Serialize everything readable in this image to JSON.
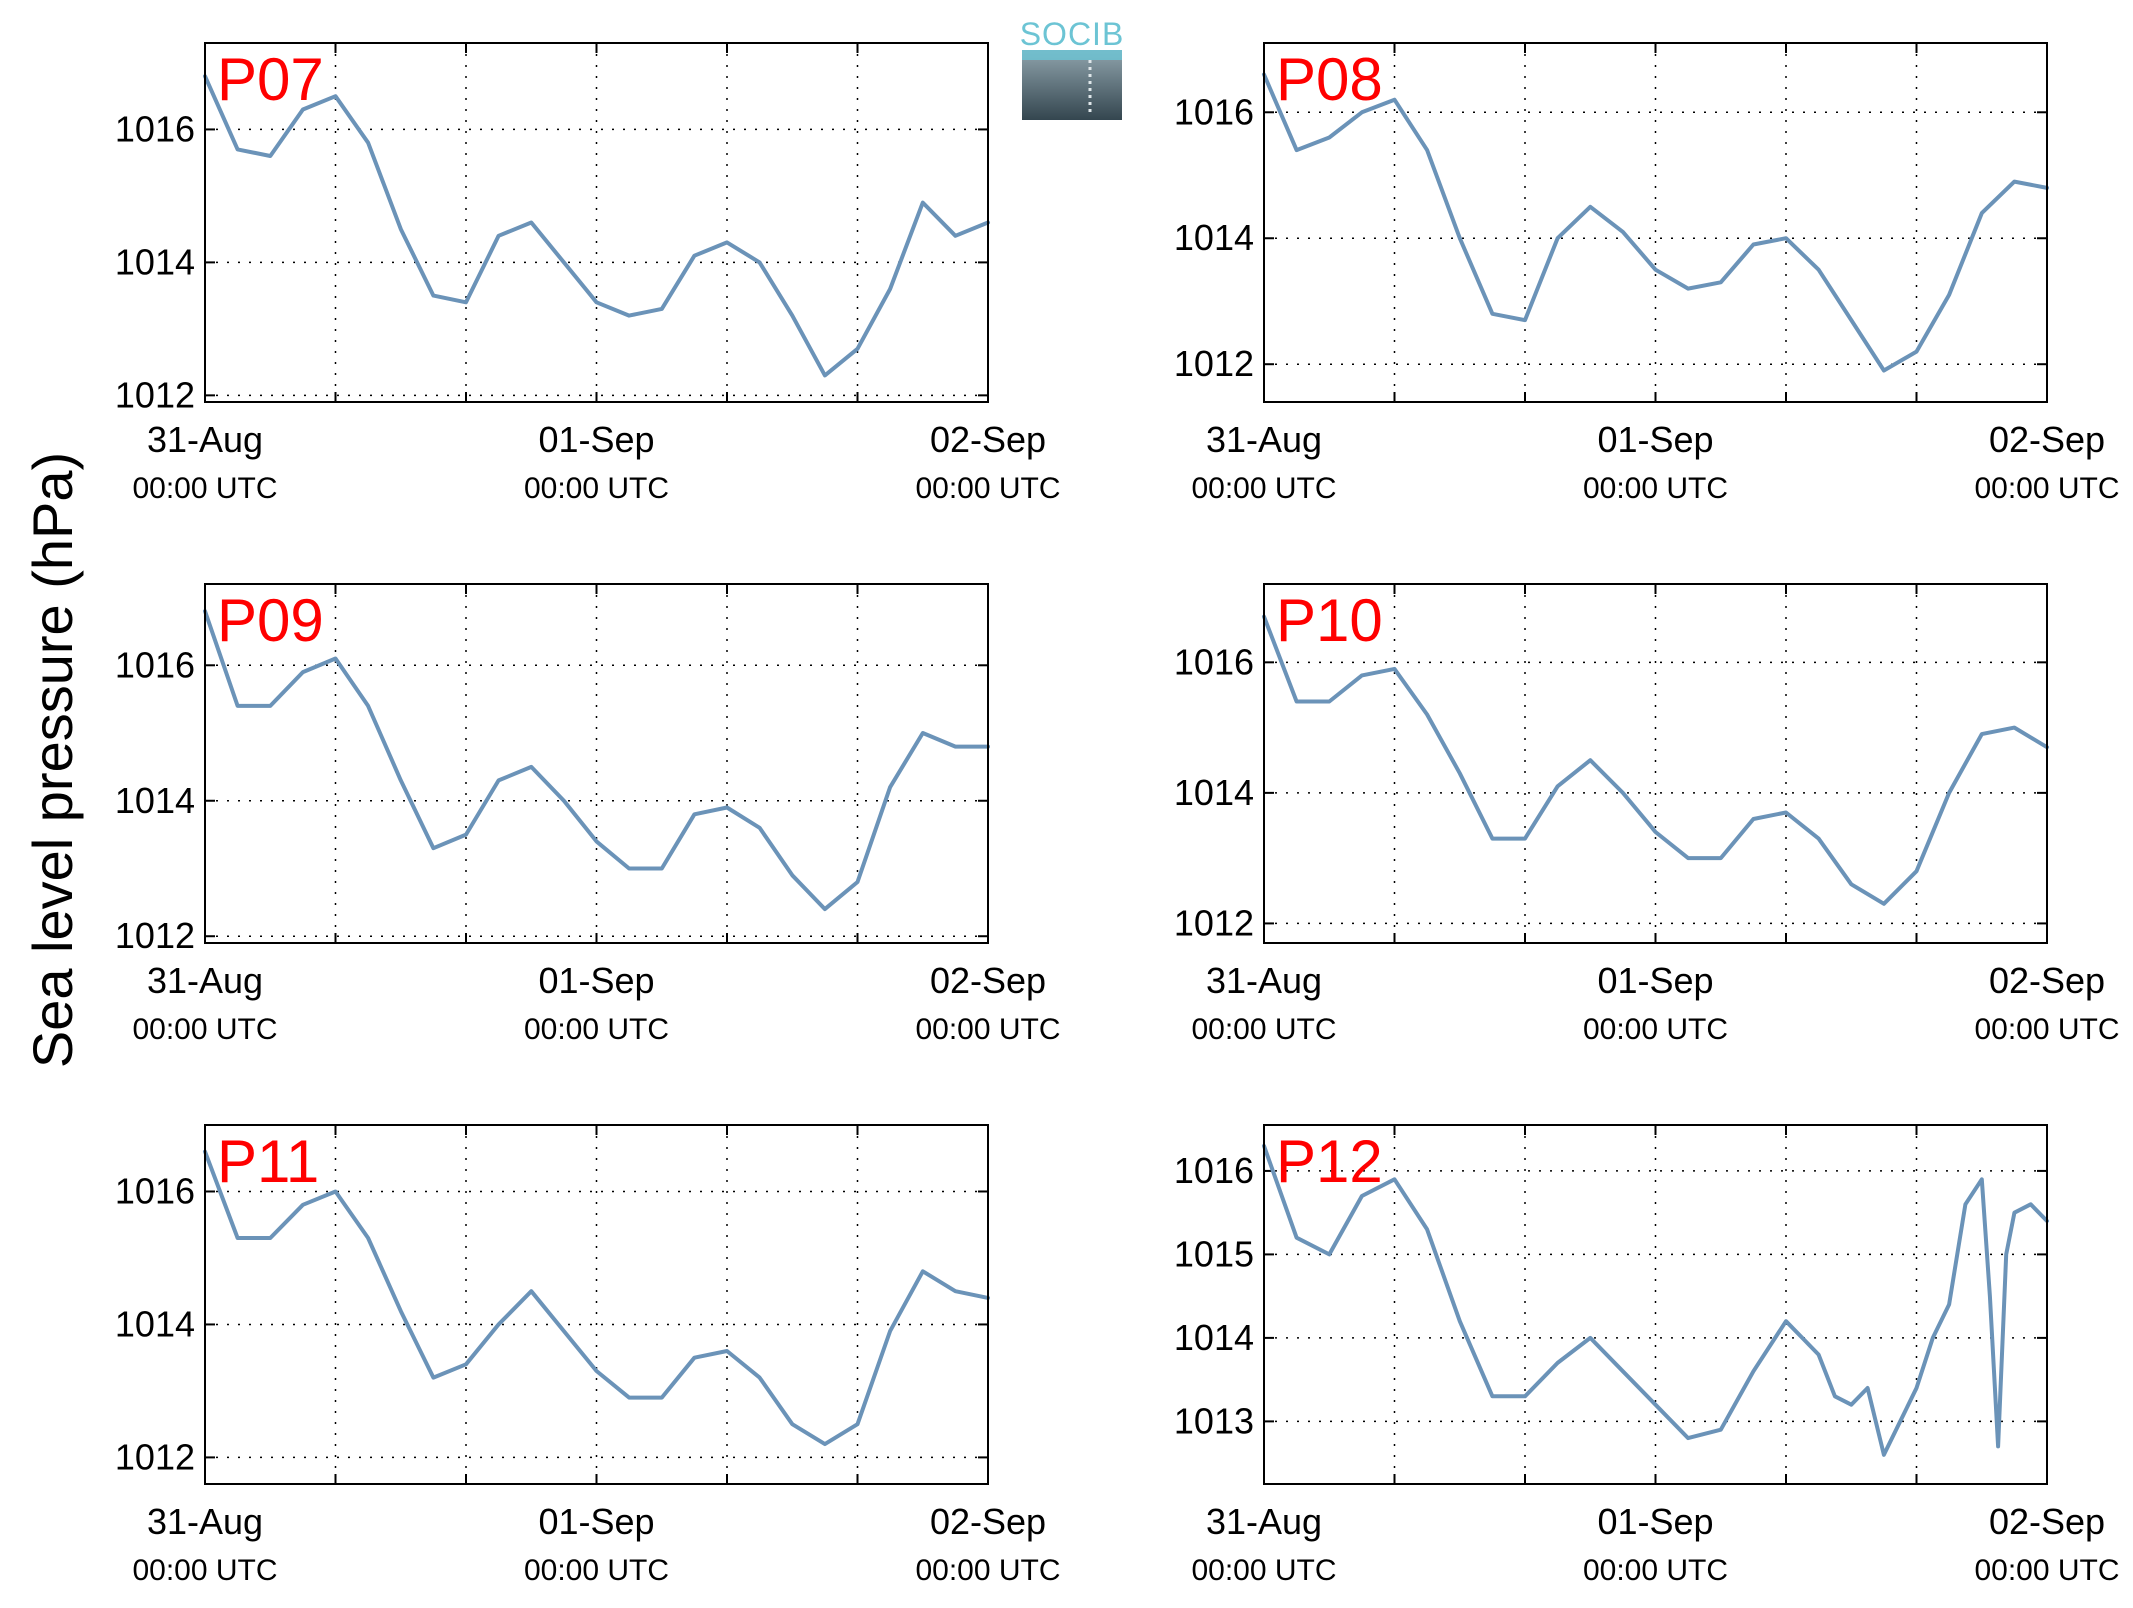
{
  "figure": {
    "ylabel": "Sea level pressure (hPa)",
    "logo_text": "SOCIB"
  },
  "colors": {
    "line": "#6b93b8",
    "title": "#ff0000",
    "grid": "#000000"
  },
  "chart_data": [
    {
      "type": "line",
      "title": "P07",
      "xlabel": "",
      "ylabel": "Sea level pressure (hPa)",
      "x_range": [
        "2013-08-31T00:00",
        "2013-09-02T00:00"
      ],
      "ylim": [
        1011.9,
        1017.3
      ],
      "yticks": [
        1012,
        1014,
        1016
      ],
      "xticks": [
        {
          "date": "31-Aug",
          "time": "00:00 UTC"
        },
        {
          "date": "01-Sep",
          "time": "00:00 UTC"
        },
        {
          "date": "02-Sep",
          "time": "00:00 UTC"
        }
      ],
      "grid": true,
      "series": [
        {
          "x_hours": [
            0,
            2,
            4,
            6,
            8,
            10,
            12,
            14,
            16,
            18,
            20,
            22,
            24,
            26,
            28,
            30,
            32,
            34,
            36,
            38,
            40,
            42,
            44,
            46,
            48
          ],
          "values": [
            1016.8,
            1015.7,
            1015.6,
            1016.3,
            1016.5,
            1015.8,
            1014.5,
            1013.5,
            1013.4,
            1014.4,
            1014.6,
            1014.0,
            1013.4,
            1013.2,
            1013.3,
            1014.1,
            1014.3,
            1014.0,
            1013.2,
            1012.3,
            1012.7,
            1013.6,
            1014.9,
            1014.4,
            1014.6
          ]
        }
      ]
    },
    {
      "type": "line",
      "title": "P08",
      "xlabel": "",
      "ylabel": "",
      "x_range": [
        "2013-08-31T00:00",
        "2013-09-02T00:00"
      ],
      "ylim": [
        1011.4,
        1017.1
      ],
      "yticks": [
        1012,
        1014,
        1016
      ],
      "xticks": [
        {
          "date": "31-Aug",
          "time": "00:00 UTC"
        },
        {
          "date": "01-Sep",
          "time": "00:00 UTC"
        },
        {
          "date": "02-Sep",
          "time": "00:00 UTC"
        }
      ],
      "grid": true,
      "series": [
        {
          "x_hours": [
            0,
            2,
            4,
            6,
            8,
            10,
            12,
            14,
            16,
            18,
            20,
            22,
            24,
            26,
            28,
            30,
            32,
            34,
            36,
            38,
            40,
            42,
            44,
            46,
            48
          ],
          "values": [
            1016.6,
            1015.4,
            1015.6,
            1016.0,
            1016.2,
            1015.4,
            1014.0,
            1012.8,
            1012.7,
            1014.0,
            1014.5,
            1014.1,
            1013.5,
            1013.2,
            1013.3,
            1013.9,
            1014.0,
            1013.5,
            1012.7,
            1011.9,
            1012.2,
            1013.1,
            1014.4,
            1014.9,
            1014.8
          ]
        }
      ]
    },
    {
      "type": "line",
      "title": "P09",
      "xlabel": "",
      "ylabel": "",
      "x_range": [
        "2013-08-31T00:00",
        "2013-09-02T00:00"
      ],
      "ylim": [
        1011.9,
        1017.2
      ],
      "yticks": [
        1012,
        1014,
        1016
      ],
      "xticks": [
        {
          "date": "31-Aug",
          "time": "00:00 UTC"
        },
        {
          "date": "01-Sep",
          "time": "00:00 UTC"
        },
        {
          "date": "02-Sep",
          "time": "00:00 UTC"
        }
      ],
      "grid": true,
      "series": [
        {
          "x_hours": [
            0,
            2,
            4,
            6,
            8,
            10,
            12,
            14,
            16,
            18,
            20,
            22,
            24,
            26,
            28,
            30,
            32,
            34,
            36,
            38,
            40,
            42,
            44,
            46,
            48
          ],
          "values": [
            1016.8,
            1015.4,
            1015.4,
            1015.9,
            1016.1,
            1015.4,
            1014.3,
            1013.3,
            1013.5,
            1014.3,
            1014.5,
            1014.0,
            1013.4,
            1013.0,
            1013.0,
            1013.8,
            1013.9,
            1013.6,
            1012.9,
            1012.4,
            1012.8,
            1014.2,
            1015.0,
            1014.8,
            1014.8
          ]
        }
      ]
    },
    {
      "type": "line",
      "title": "P10",
      "xlabel": "",
      "ylabel": "",
      "x_range": [
        "2013-08-31T00:00",
        "2013-09-02T00:00"
      ],
      "ylim": [
        1011.7,
        1017.2
      ],
      "yticks": [
        1012,
        1014,
        1016
      ],
      "xticks": [
        {
          "date": "31-Aug",
          "time": "00:00 UTC"
        },
        {
          "date": "01-Sep",
          "time": "00:00 UTC"
        },
        {
          "date": "02-Sep",
          "time": "00:00 UTC"
        }
      ],
      "grid": true,
      "series": [
        {
          "x_hours": [
            0,
            2,
            4,
            6,
            8,
            10,
            12,
            14,
            16,
            18,
            20,
            22,
            24,
            26,
            28,
            30,
            32,
            34,
            36,
            38,
            40,
            42,
            44,
            46,
            48
          ],
          "values": [
            1016.7,
            1015.4,
            1015.4,
            1015.8,
            1015.9,
            1015.2,
            1014.3,
            1013.3,
            1013.3,
            1014.1,
            1014.5,
            1014.0,
            1013.4,
            1013.0,
            1013.0,
            1013.6,
            1013.7,
            1013.3,
            1012.6,
            1012.3,
            1012.8,
            1014.0,
            1014.9,
            1015.0,
            1014.7
          ]
        }
      ]
    },
    {
      "type": "line",
      "title": "P11",
      "xlabel": "",
      "ylabel": "",
      "x_range": [
        "2013-08-31T00:00",
        "2013-09-02T00:00"
      ],
      "ylim": [
        1011.6,
        1017.0
      ],
      "yticks": [
        1012,
        1014,
        1016
      ],
      "xticks": [
        {
          "date": "31-Aug",
          "time": "00:00 UTC"
        },
        {
          "date": "01-Sep",
          "time": "00:00 UTC"
        },
        {
          "date": "02-Sep",
          "time": "00:00 UTC"
        }
      ],
      "grid": true,
      "series": [
        {
          "x_hours": [
            0,
            2,
            4,
            6,
            8,
            10,
            12,
            14,
            16,
            18,
            20,
            22,
            24,
            26,
            28,
            30,
            32,
            34,
            36,
            38,
            40,
            42,
            44,
            46,
            48
          ],
          "values": [
            1016.6,
            1015.3,
            1015.3,
            1015.8,
            1016.0,
            1015.3,
            1014.2,
            1013.2,
            1013.4,
            1014.0,
            1014.5,
            1013.9,
            1013.3,
            1012.9,
            1012.9,
            1013.5,
            1013.6,
            1013.2,
            1012.5,
            1012.2,
            1012.5,
            1013.9,
            1014.8,
            1014.5,
            1014.4
          ]
        }
      ]
    },
    {
      "type": "line",
      "title": "P12",
      "xlabel": "",
      "ylabel": "",
      "x_range": [
        "2013-08-31T00:00",
        "2013-09-02T00:00"
      ],
      "ylim": [
        1012.25,
        1016.55
      ],
      "yticks": [
        1013,
        1014,
        1015,
        1016
      ],
      "xticks": [
        {
          "date": "31-Aug",
          "time": "00:00 UTC"
        },
        {
          "date": "01-Sep",
          "time": "00:00 UTC"
        },
        {
          "date": "02-Sep",
          "time": "00:00 UTC"
        }
      ],
      "grid": true,
      "series": [
        {
          "x_hours": [
            0,
            2,
            4,
            6,
            8,
            10,
            12,
            14,
            16,
            18,
            20,
            22,
            24,
            26,
            28,
            30,
            32,
            33,
            34,
            35,
            36,
            37,
            38,
            39,
            40,
            41,
            42,
            43,
            44,
            44.5,
            45,
            45.5,
            46,
            47,
            48
          ],
          "values": [
            1016.3,
            1015.2,
            1015.0,
            1015.7,
            1015.9,
            1015.3,
            1014.2,
            1013.3,
            1013.3,
            1013.7,
            1014.0,
            1013.6,
            1013.2,
            1012.8,
            1012.9,
            1013.6,
            1014.2,
            1014.0,
            1013.8,
            1013.3,
            1013.2,
            1013.4,
            1012.6,
            1013.0,
            1013.4,
            1014.0,
            1014.4,
            1015.6,
            1015.9,
            1014.5,
            1012.7,
            1015.0,
            1015.5,
            1015.6,
            1015.4
          ]
        }
      ]
    }
  ]
}
